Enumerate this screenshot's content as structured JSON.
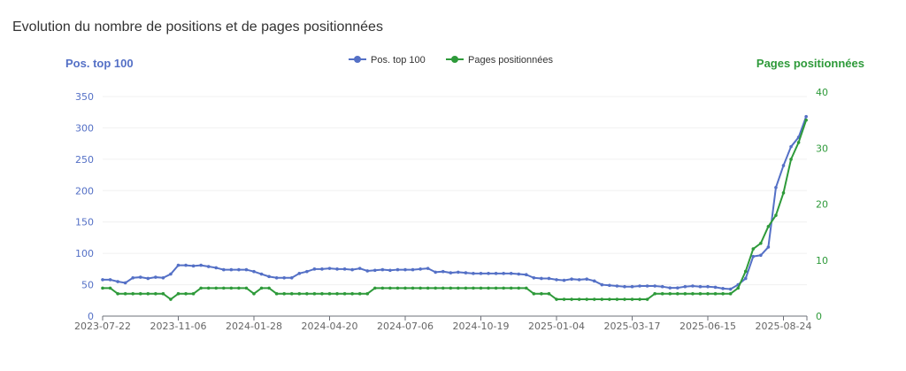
{
  "title": "Evolution du nombre de positions et de pages positionnées",
  "chart_data": {
    "type": "line",
    "title": "Evolution du nombre de positions et de pages positionnées",
    "ylabel": "Pos. top 100",
    "y2label": "Pages positionnées",
    "ylim": [
      0,
      350
    ],
    "y2lim": [
      0,
      40
    ],
    "yticks": [
      "0",
      "50",
      "100",
      "150",
      "200",
      "250",
      "300",
      "350"
    ],
    "y2ticks": [
      "0",
      "10",
      "20",
      "30",
      "40"
    ],
    "xticks": [
      "2023-07-22",
      "2023-11-06",
      "2024-01-28",
      "2024-04-20",
      "2024-07-06",
      "2024-10-19",
      "2025-01-04",
      "2025-03-17",
      "2025-06-15",
      "2025-08-24"
    ],
    "legend": [
      "Pos. top 100",
      "Pages positionnées"
    ],
    "legend_position": "top-center",
    "colors": {
      "pos": "#5470c6",
      "pages": "#2e9a3a"
    },
    "series": [
      {
        "name": "Pos. top 100",
        "axis": "left",
        "values": [
          58,
          58,
          55,
          53,
          61,
          62,
          60,
          62,
          61,
          67,
          81,
          81,
          80,
          81,
          79,
          77,
          74,
          74,
          74,
          74,
          71,
          67,
          63,
          61,
          61,
          61,
          68,
          71,
          75,
          75,
          76,
          75,
          75,
          74,
          76,
          72,
          73,
          74,
          73,
          74,
          74,
          74,
          75,
          76,
          70,
          71,
          69,
          70,
          69,
          68,
          68,
          68,
          68,
          68,
          68,
          67,
          66,
          61,
          60,
          60,
          58,
          57,
          59,
          58,
          59,
          56,
          50,
          49,
          48,
          47,
          47,
          48,
          48,
          48,
          47,
          45,
          45,
          47,
          48,
          47,
          47,
          46,
          44,
          43,
          50,
          60,
          95,
          97,
          110,
          205,
          240,
          270,
          285,
          318
        ]
      },
      {
        "name": "Pages positionnées",
        "axis": "right",
        "values": [
          5,
          5,
          4,
          4,
          4,
          4,
          4,
          4,
          4,
          3,
          4,
          4,
          4,
          5,
          5,
          5,
          5,
          5,
          5,
          5,
          4,
          5,
          5,
          4,
          4,
          4,
          4,
          4,
          4,
          4,
          4,
          4,
          4,
          4,
          4,
          4,
          5,
          5,
          5,
          5,
          5,
          5,
          5,
          5,
          5,
          5,
          5,
          5,
          5,
          5,
          5,
          5,
          5,
          5,
          5,
          5,
          5,
          4,
          4,
          4,
          3,
          3,
          3,
          3,
          3,
          3,
          3,
          3,
          3,
          3,
          3,
          3,
          3,
          4,
          4,
          4,
          4,
          4,
          4,
          4,
          4,
          4,
          4,
          4,
          5,
          8,
          12,
          13,
          16,
          18,
          22,
          28,
          31,
          35
        ]
      }
    ]
  }
}
